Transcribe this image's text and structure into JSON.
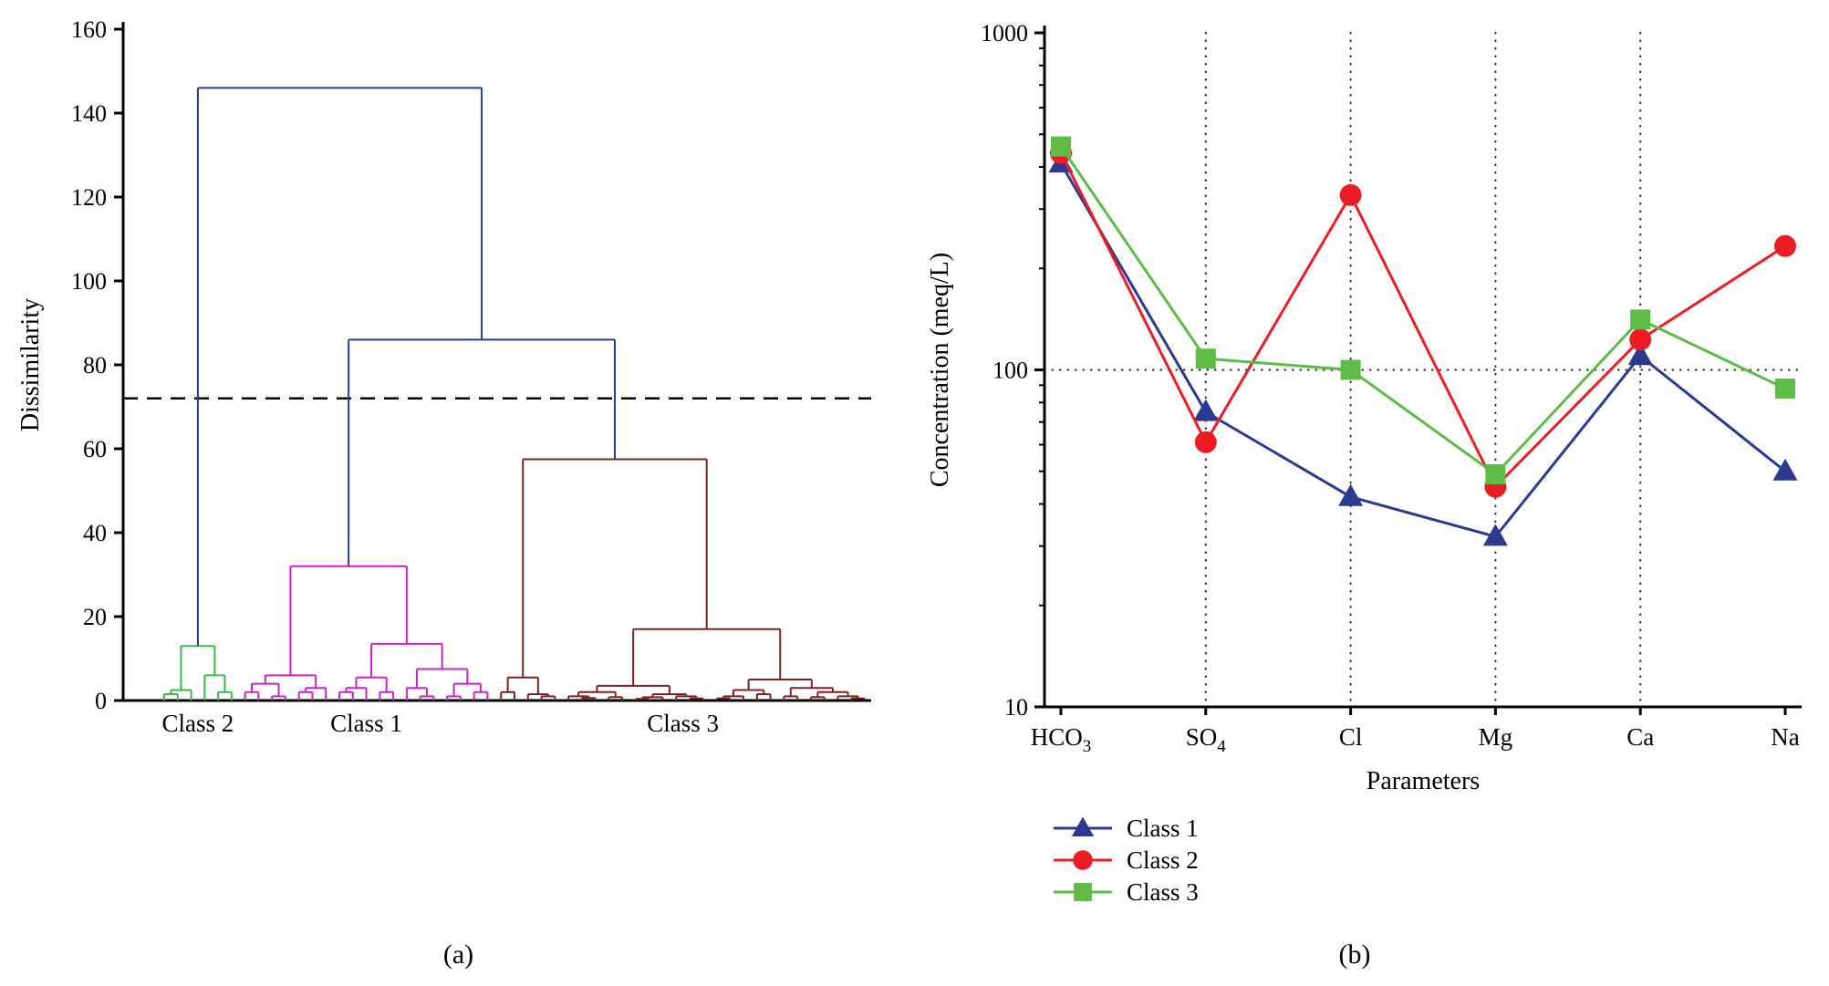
{
  "page": {
    "background": "#ffffff"
  },
  "captions": {
    "a": "(a)",
    "b": "(b)"
  },
  "chart_data": [
    {
      "id": "dendrogram",
      "type": "dendrogram",
      "ylabel": "Dissimilarity",
      "ylim": [
        0,
        160
      ],
      "ytick_step": 20,
      "yticks": [
        0,
        20,
        40,
        60,
        80,
        100,
        120,
        140,
        160
      ],
      "grid": false,
      "threshold": {
        "value": 72,
        "style": "dashed",
        "color": "#000000"
      },
      "class_labels": [
        "Class 2",
        "Class 1",
        "Class 3"
      ],
      "colors": {
        "top_links": "#2b3990",
        "class2": "#3cb54a",
        "class1": "#cc22cc",
        "class3": "#7f2020"
      },
      "tree": {
        "h": 146,
        "color": "#2b3990",
        "children": [
          {
            "label": "Class 2",
            "color": "#3cb54a",
            "node": [
              13,
              [
                2.5,
                [
                  1.5,
                  0,
                  0
                ],
                0
              ],
              [
                6,
                0,
                [
                  2,
                  0,
                  0
                ]
              ]
            ]
          },
          {
            "h": 86,
            "children": [
              {
                "label": "Class 1",
                "color": "#cc22cc",
                "node": [
                  32,
                  [
                    6,
                    [
                      4,
                      [
                        2,
                        0,
                        0
                      ],
                      [
                        1,
                        0,
                        0
                      ]
                    ],
                    [
                      3,
                      [
                        2,
                        0,
                        0
                      ],
                      0
                    ]
                  ],
                  [
                    13.5,
                    [
                      5.5,
                      [
                        3,
                        [
                          2,
                          0,
                          0
                        ],
                        0
                      ],
                      [
                        2,
                        0,
                        0
                      ]
                    ],
                    [
                      7.5,
                      [
                        3,
                        0,
                        [
                          1,
                          0,
                          0
                        ]
                      ],
                      [
                        4,
                        [
                          1,
                          0,
                          0
                        ],
                        [
                          2,
                          0,
                          0
                        ]
                      ]
                    ]
                  ]
                ]
              },
              {
                "label": "Class 3",
                "color": "#7f2020",
                "node": [
                  57.5,
                  [
                    5.5,
                    [
                      2,
                      0,
                      0
                    ],
                    [
                      1.5,
                      0,
                      [
                        1,
                        0,
                        0
                      ]
                    ]
                  ],
                  [
                    17,
                    [
                      3.5,
                      [
                        2,
                        [
                          1,
                          0,
                          [
                            0.6,
                            0,
                            0
                          ]
                        ],
                        [
                          0.8,
                          0,
                          0
                        ]
                      ],
                      [
                        1.5,
                        [
                          0.8,
                          [
                            0.4,
                            0,
                            0
                          ],
                          0
                        ],
                        [
                          1,
                          0,
                          [
                            0.5,
                            0,
                            0
                          ]
                        ]
                      ]
                    ],
                    [
                      5,
                      [
                        2.5,
                        [
                          1,
                          [
                            0.5,
                            0,
                            0
                          ],
                          0
                        ],
                        [
                          1.5,
                          0,
                          0
                        ]
                      ],
                      [
                        3,
                        [
                          1,
                          0,
                          0
                        ],
                        [
                          2,
                          [
                            0.8,
                            0,
                            0
                          ],
                          [
                            1,
                            0,
                            [
                              0.5,
                              0,
                              0
                            ]
                          ]
                        ]
                      ]
                    ]
                  ]
                ]
              }
            ]
          }
        ]
      }
    },
    {
      "id": "profiles",
      "type": "line",
      "xlabel": "Parameters",
      "ylabel": "Concentration (meq/L)",
      "yscale": "log",
      "ylim": [
        10,
        1000
      ],
      "yticks": [
        10,
        100,
        1000
      ],
      "categories": [
        {
          "t": "HCO",
          "s": "3"
        },
        {
          "t": "SO",
          "s": "4"
        },
        {
          "t": "Cl",
          "s": ""
        },
        {
          "t": "Mg",
          "s": ""
        },
        {
          "t": "Ca",
          "s": ""
        },
        {
          "t": "Na",
          "s": ""
        }
      ],
      "series": [
        {
          "name": "Class 1",
          "color": "#2b3990",
          "marker": "triangle",
          "values": [
            410,
            75,
            42,
            32,
            110,
            50
          ]
        },
        {
          "name": "Class 2",
          "color": "#ec1c24",
          "marker": "circle",
          "values": [
            440,
            61,
            330,
            45,
            123,
            233
          ]
        },
        {
          "name": "Class 3",
          "color": "#5dbb46",
          "marker": "square",
          "values": [
            460,
            108,
            100,
            49,
            141,
            88
          ]
        }
      ],
      "gridline_categories": [
        1,
        2,
        3,
        4
      ],
      "gridline_values": [
        100
      ],
      "gridline_style": "dotted",
      "legend": {
        "position": "below-left",
        "entries": [
          "Class 1",
          "Class 2",
          "Class 3"
        ]
      }
    }
  ]
}
